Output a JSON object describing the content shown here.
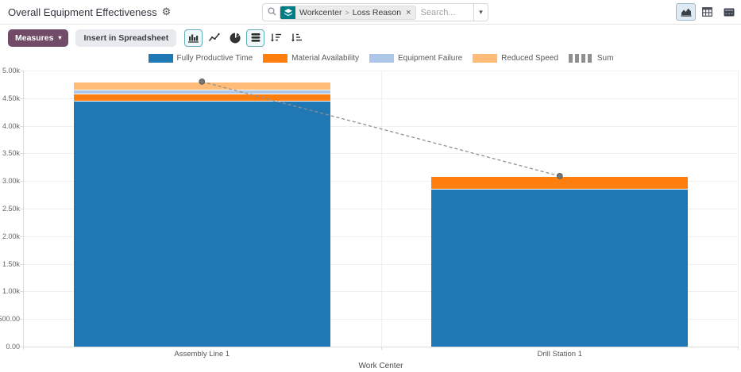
{
  "navbar": {
    "title": "Overall Equipment Effectiveness"
  },
  "icons": {
    "gear": "⚙",
    "caret_down": "▾",
    "close": "×",
    "facet_separator": ">"
  },
  "search": {
    "placeholder": "Search...",
    "facet": {
      "part1": "Workcenter",
      "part2": "Loss Reason"
    }
  },
  "view_switcher": {
    "graph_active": true,
    "buttons": [
      "graph",
      "pivot",
      "dashboard"
    ]
  },
  "toolbar": {
    "measures_label": "Measures",
    "insert_label": "Insert in Spreadsheet",
    "active_chart_buttons": [
      "bar",
      "stacked"
    ]
  },
  "colors": {
    "accent_purple": "#714b67",
    "facet_teal": "#017e84",
    "active_toggle_border": "#62afba"
  },
  "chart_data": {
    "type": "bar",
    "stacked": true,
    "title": "",
    "xlabel": "Work Center",
    "ylabel": "",
    "ylim": [
      0,
      5000
    ],
    "grid": true,
    "legend_position": "top",
    "categories": [
      "Assembly Line 1",
      "Drill Station 1"
    ],
    "series": [
      {
        "name": "Fully Productive Time",
        "color": "#1f77b4",
        "values": [
          4450,
          2860
        ]
      },
      {
        "name": "Material Availability",
        "color": "#ff7f0e",
        "values": [
          130,
          230
        ]
      },
      {
        "name": "Equipment Failure",
        "color": "#aec7e8",
        "values": [
          70,
          0
        ]
      },
      {
        "name": "Reduced Speed",
        "color": "#ffbb78",
        "values": [
          150,
          0
        ]
      }
    ],
    "sum_line": {
      "name": "Sum",
      "color": "#8f8f8f",
      "style": "dashed",
      "values": [
        4800,
        3090
      ]
    },
    "ytick_labels": [
      "5.00k",
      "4.50k",
      "4.00k",
      "3.50k",
      "3.00k",
      "2.50k",
      "2.00k",
      "1.50k",
      "1.00k",
      "500.00",
      "0.00"
    ]
  }
}
